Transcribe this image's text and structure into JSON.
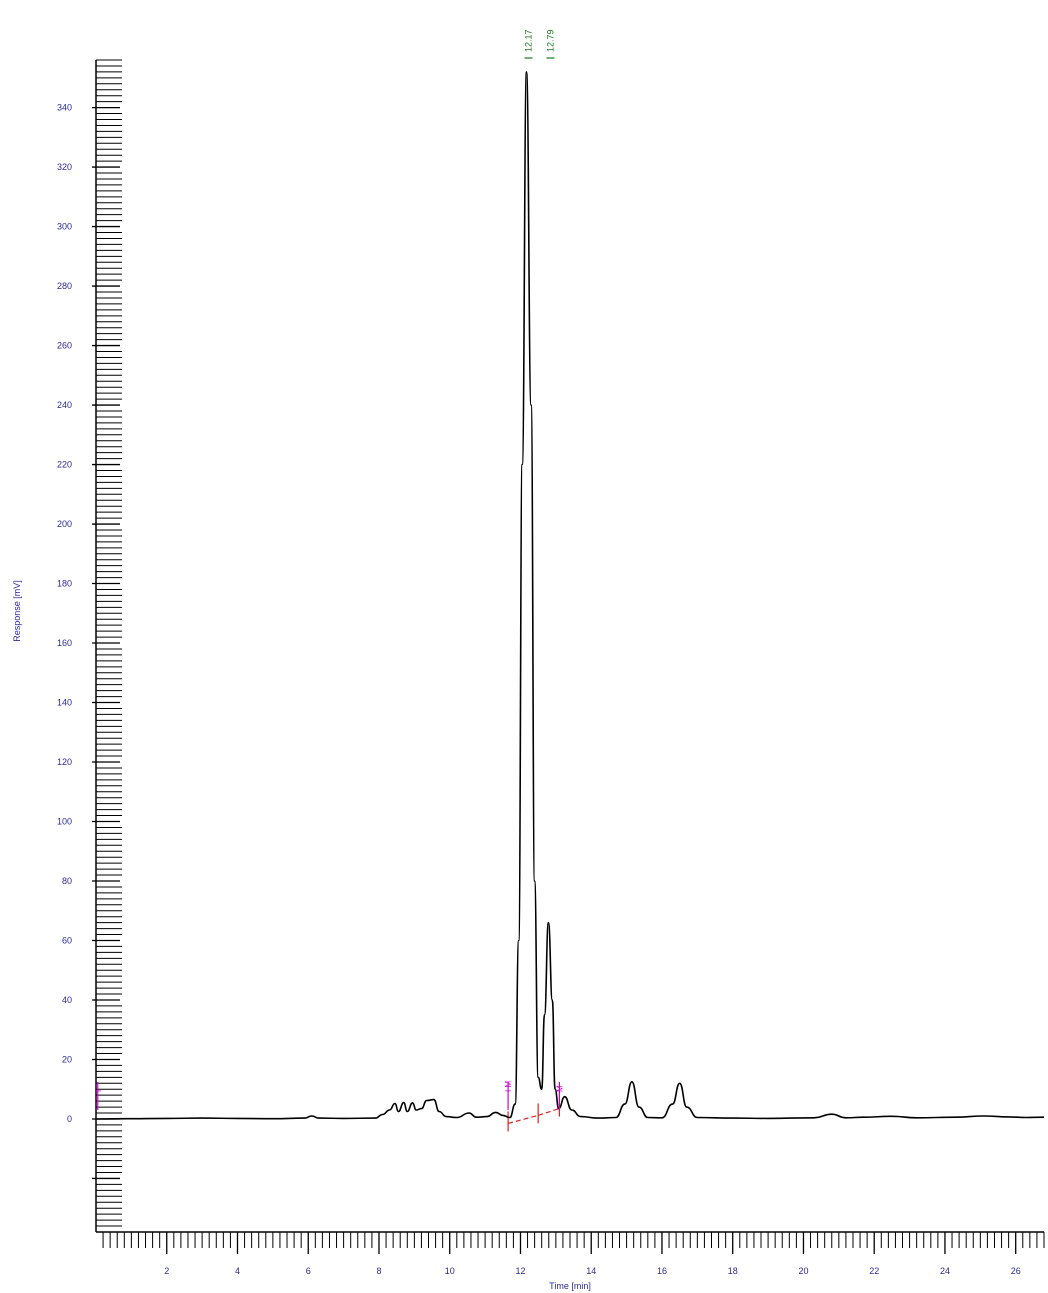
{
  "chart_data": {
    "type": "line",
    "xlabel": "Time [min]",
    "ylabel": "Response [mV]",
    "xlim": [
      0,
      26.8
    ],
    "ylim": [
      -38,
      356
    ],
    "x_ticks": [
      2,
      4,
      6,
      8,
      10,
      12,
      14,
      16,
      18,
      20,
      22,
      24,
      26
    ],
    "y_ticks": [
      0,
      20,
      40,
      60,
      80,
      100,
      120,
      140,
      160,
      180,
      200,
      220,
      240,
      260,
      280,
      300,
      320,
      340
    ],
    "peak_labels": [
      {
        "time": 12.17,
        "text": "12.17"
      },
      {
        "time": 12.79,
        "text": "12.79"
      }
    ],
    "event_markers": [
      {
        "time": 0.05,
        "text": "I"
      },
      {
        "time": 11.65,
        "text": "I M"
      },
      {
        "time": 13.1,
        "text": "M"
      }
    ],
    "baseline_segments": [
      [
        [
          11.65,
          -1.5
        ],
        [
          12.5,
          1.2
        ]
      ],
      [
        [
          12.5,
          1.2
        ],
        [
          13.1,
          3.5
        ]
      ]
    ],
    "series": [
      {
        "color": "#000000",
        "points": [
          [
            0,
            0
          ],
          [
            1,
            0.1
          ],
          [
            2,
            0.2
          ],
          [
            3,
            0.3
          ],
          [
            4,
            0.2
          ],
          [
            5,
            0.1
          ],
          [
            5.9,
            0.3
          ],
          [
            6.1,
            1.0
          ],
          [
            6.3,
            0.3
          ],
          [
            7,
            0.2
          ],
          [
            7.9,
            0.3
          ],
          [
            8.1,
            1.5
          ],
          [
            8.3,
            3.0
          ],
          [
            8.45,
            5.2
          ],
          [
            8.55,
            2.5
          ],
          [
            8.7,
            5.5
          ],
          [
            8.8,
            2.5
          ],
          [
            8.95,
            5.4
          ],
          [
            9.05,
            3.0
          ],
          [
            9.2,
            3.5
          ],
          [
            9.35,
            6.2
          ],
          [
            9.55,
            6.5
          ],
          [
            9.7,
            2.5
          ],
          [
            9.9,
            0.8
          ],
          [
            10.2,
            0.5
          ],
          [
            10.55,
            2.0
          ],
          [
            10.75,
            0.6
          ],
          [
            11.05,
            0.8
          ],
          [
            11.3,
            2.2
          ],
          [
            11.5,
            1.2
          ],
          [
            11.7,
            0.5
          ],
          [
            11.85,
            5.0
          ],
          [
            11.95,
            60
          ],
          [
            12.05,
            220
          ],
          [
            12.17,
            352
          ],
          [
            12.3,
            240
          ],
          [
            12.4,
            80
          ],
          [
            12.5,
            14
          ],
          [
            12.6,
            10
          ],
          [
            12.68,
            35
          ],
          [
            12.79,
            66
          ],
          [
            12.9,
            40
          ],
          [
            12.98,
            10
          ],
          [
            13.08,
            3.5
          ],
          [
            13.25,
            7.5
          ],
          [
            13.45,
            3.0
          ],
          [
            13.7,
            0.8
          ],
          [
            14.2,
            0.3
          ],
          [
            14.7,
            0.5
          ],
          [
            14.95,
            5
          ],
          [
            15.15,
            12.5
          ],
          [
            15.35,
            4
          ],
          [
            15.6,
            0.5
          ],
          [
            16.0,
            0.4
          ],
          [
            16.3,
            5
          ],
          [
            16.5,
            12
          ],
          [
            16.7,
            4
          ],
          [
            17.0,
            0.5
          ],
          [
            18,
            0.3
          ],
          [
            19,
            0.2
          ],
          [
            20.3,
            0.4
          ],
          [
            20.8,
            1.6
          ],
          [
            21.2,
            0.4
          ],
          [
            21.7,
            0.6
          ],
          [
            22.5,
            0.9
          ],
          [
            23.2,
            0.4
          ],
          [
            24.3,
            0.6
          ],
          [
            25.1,
            1.0
          ],
          [
            25.8,
            0.7
          ],
          [
            26.3,
            0.5
          ],
          [
            26.8,
            0.6
          ]
        ]
      }
    ]
  }
}
